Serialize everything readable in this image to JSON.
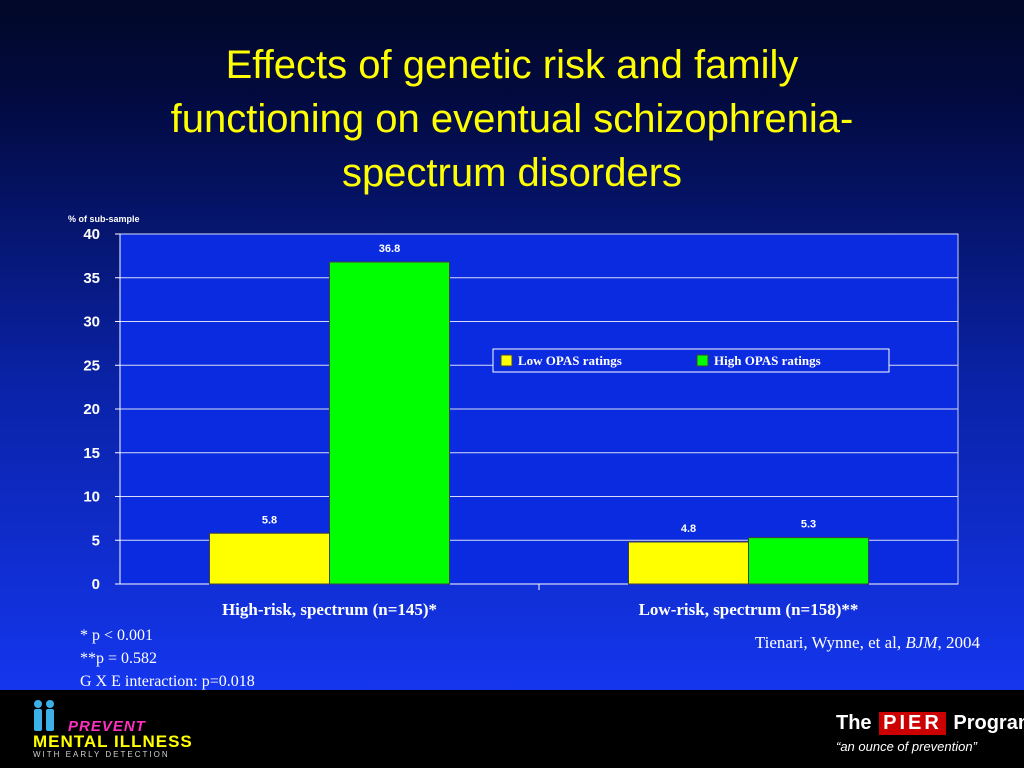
{
  "title_lines": [
    "Effects of genetic risk and family",
    "functioning on eventual schizophrenia-",
    "spectrum disorders"
  ],
  "chart_data": {
    "type": "bar",
    "ylabel": "% of sub-sample",
    "ylim": [
      0,
      40
    ],
    "yticks": [
      0,
      5,
      10,
      15,
      20,
      25,
      30,
      35,
      40
    ],
    "grid": true,
    "legend_position": "right",
    "categories": [
      "High-risk, spectrum (n=145)*",
      "Low-risk, spectrum (n=158)**"
    ],
    "series": [
      {
        "name": "Low OPAS ratings",
        "values": [
          5.8,
          4.8
        ],
        "data_labels": [
          "5.8",
          "4.8"
        ],
        "color": "#ffff00"
      },
      {
        "name": "High OPAS ratings",
        "values": [
          36.8,
          5.3
        ],
        "data_labels": [
          "36.8",
          "5.3"
        ],
        "color": "#00ff00"
      }
    ]
  },
  "footnotes": [
    "* p < 0.001",
    "**p = 0.582",
    "G X E interaction: p=0.018"
  ],
  "citation": {
    "authors": "Tienari, Wynne, et al, ",
    "journal": "BJM",
    "year": ", 2004"
  },
  "footer": {
    "left_logo": {
      "line1": "PREVENT",
      "line2": "MENTAL ILLNESS",
      "line3": "WITH EARLY DETECTION"
    },
    "right_logo": {
      "prefix": "The ",
      "box": "PIER",
      "suffix": " Program",
      "tagline": "“an ounce of prevention”"
    }
  },
  "colors": {
    "background_top": "#010828",
    "background_bottom": "#1436ee",
    "title": "#ffff00",
    "plot_bg": "#0a2be0"
  }
}
